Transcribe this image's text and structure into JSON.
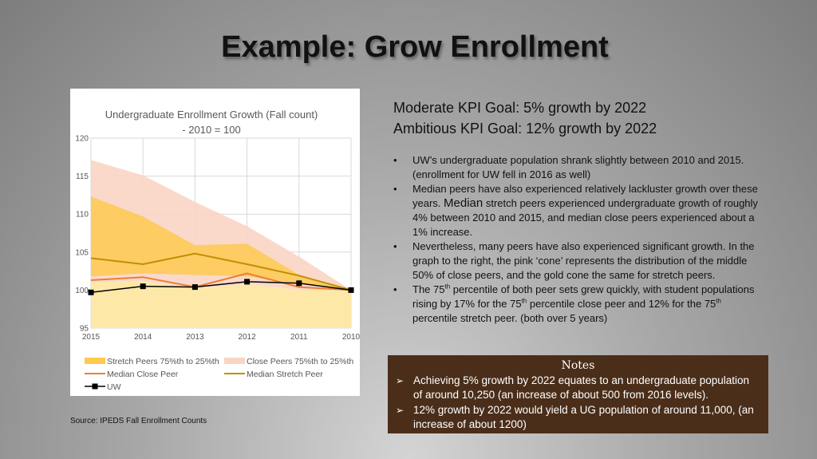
{
  "slide": {
    "title": "Example: Grow Enrollment",
    "source": "Source: IPEDS Fall Enrollment Counts"
  },
  "kpi": {
    "moderate": "Moderate KPI Goal:  5% growth by 2022",
    "ambitious": "Ambitious KPI Goal:  12%  growth by 2022"
  },
  "bullets": {
    "b1": "UW’s undergraduate population shrank slightly between 2010 and 2015. (enrollment for UW fell in 2016 as well)",
    "b2_pre": "Median peers have also experienced relatively lackluster growth over these years. ",
    "b2_big": "Median",
    "b2_post": " stretch peers experienced undergraduate growth of roughly 4% between 2010 and 2015, and median close peers experienced about a 1% increase.",
    "b3": "Nevertheless, many peers have also experienced significant growth. In the graph to the right, the pink ‘cone’ represents the distribution of the middle 50% of close peers, and the gold cone the same for stretch peers.",
    "b4_a": "The 75",
    "b4_sup1": "th",
    "b4_b": " percentile of both peer sets grew quickly, with student populations rising by 17% for the 75",
    "b4_sup2": "th",
    "b4_c": " percentile close peer and 12% for the 75",
    "b4_sup3": "th",
    "b4_d": " percentile stretch peer.  (both over 5 years)"
  },
  "notes": {
    "title": "Notes",
    "n1": "Achieving 5%  growth by 2022 equates to an undergraduate population of around 10,250 (an increase of about 500 from 2016 levels).",
    "n2": "12% growth by 2022 would yield a UG population of around 11,000, (an increase of about 1200)"
  },
  "chart_data": {
    "type": "area",
    "title_line1": "Undergraduate Enrollment Growth (Fall count)",
    "title_line2": "- 2010 = 100",
    "categories": [
      "2015",
      "2014",
      "2013",
      "2012",
      "2011",
      "2010"
    ],
    "ylim": [
      95,
      120
    ],
    "yticks": [
      "95",
      "100",
      "105",
      "110",
      "115",
      "120"
    ],
    "grid": true,
    "legend_position": "bottom",
    "bands": [
      {
        "name": "Stretch Peers 75%th to 25%th",
        "color": "#fdc951",
        "upper": [
          112.3,
          109.7,
          105.9,
          106.1,
          102.0,
          100.0
        ],
        "lower": [
          101.8,
          102.2,
          102.0,
          101.8,
          100.9,
          100.0
        ]
      },
      {
        "name": "Close Peers 75%th to 25%th",
        "color": "#f9d5c4",
        "upper": [
          117.1,
          115.1,
          111.6,
          108.4,
          104.4,
          100.0
        ],
        "lower": [
          101.0,
          101.2,
          100.2,
          100.8,
          100.0,
          100.0
        ]
      }
    ],
    "series": [
      {
        "name": "Median Close Peer",
        "color": "#ed7d31",
        "values": [
          101.3,
          101.7,
          100.4,
          102.2,
          100.4,
          100.0
        ]
      },
      {
        "name": "Median Stretch Peer",
        "color": "#bf9000",
        "values": [
          104.2,
          103.4,
          104.8,
          103.4,
          101.9,
          100.0
        ]
      },
      {
        "name": "UW",
        "color": "#000000",
        "values": [
          99.7,
          100.5,
          100.4,
          101.1,
          100.9,
          100.0
        ]
      }
    ]
  }
}
